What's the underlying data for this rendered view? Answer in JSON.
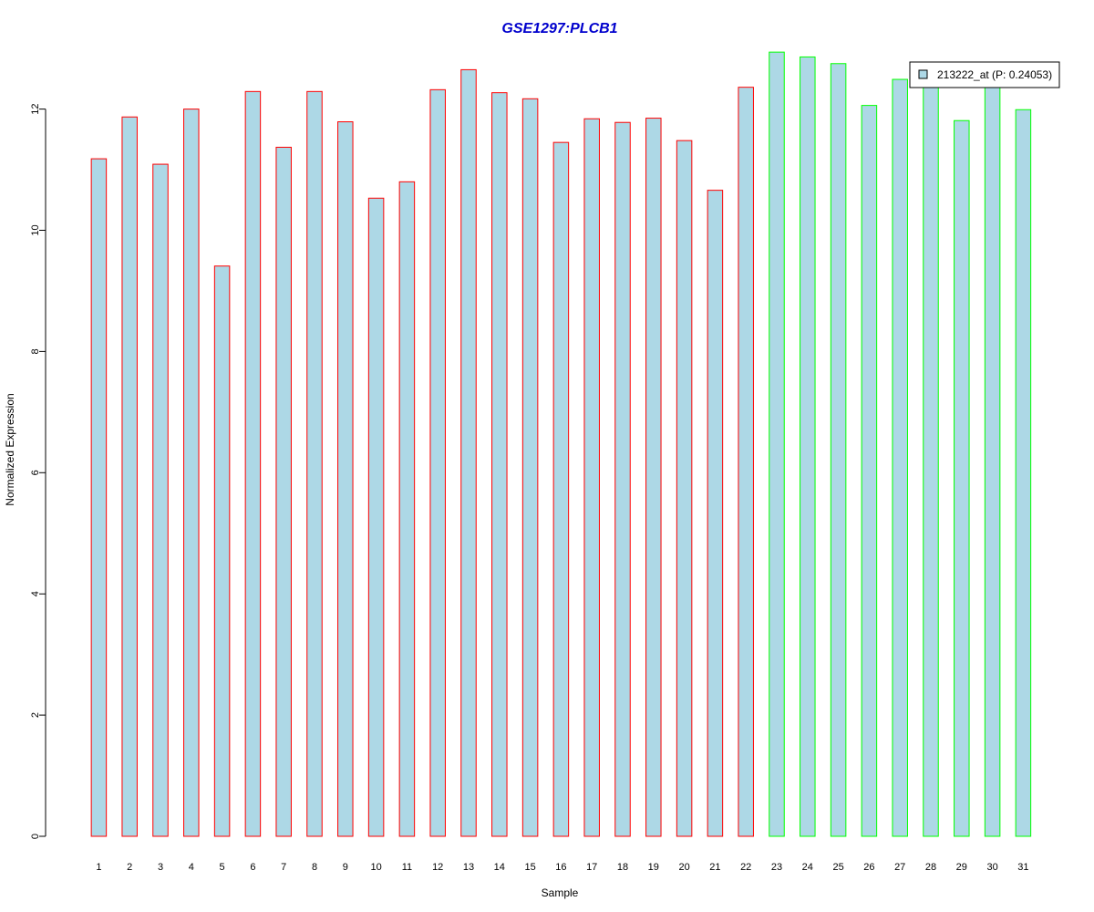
{
  "chart_data": {
    "type": "bar",
    "title": "GSE1297:PLCB1",
    "xlabel": "Sample",
    "ylabel": "Normalized Expression",
    "categories": [
      "1",
      "2",
      "3",
      "4",
      "5",
      "6",
      "7",
      "8",
      "9",
      "10",
      "11",
      "12",
      "13",
      "14",
      "15",
      "16",
      "17",
      "18",
      "19",
      "20",
      "21",
      "22",
      "23",
      "24",
      "25",
      "26",
      "27",
      "28",
      "29",
      "30",
      "31"
    ],
    "series": [
      {
        "name": "213222_at (P: 0.24053)",
        "values": [
          11.18,
          11.87,
          11.09,
          12.0,
          9.41,
          12.29,
          11.37,
          12.29,
          11.79,
          10.53,
          10.8,
          12.32,
          12.65,
          12.27,
          12.17,
          11.45,
          11.84,
          11.78,
          11.85,
          11.48,
          10.66,
          12.36,
          12.94,
          12.86,
          12.75,
          12.06,
          12.49,
          12.38,
          11.81,
          12.4,
          11.99
        ]
      }
    ],
    "group_index": [
      1,
      1,
      1,
      1,
      1,
      1,
      1,
      1,
      1,
      1,
      1,
      1,
      1,
      1,
      1,
      1,
      1,
      1,
      1,
      1,
      1,
      1,
      2,
      2,
      2,
      2,
      2,
      2,
      2,
      2,
      2
    ],
    "ylim": [
      0,
      12
    ],
    "yticks": [
      0,
      2,
      4,
      6,
      8,
      10,
      12
    ],
    "grid": false,
    "legend_position": "top-right",
    "colors": {
      "bar_fill": "#add8e6",
      "group1_border": "#ff0000",
      "group2_border": "#00ff00",
      "title": "#0000cd"
    }
  }
}
